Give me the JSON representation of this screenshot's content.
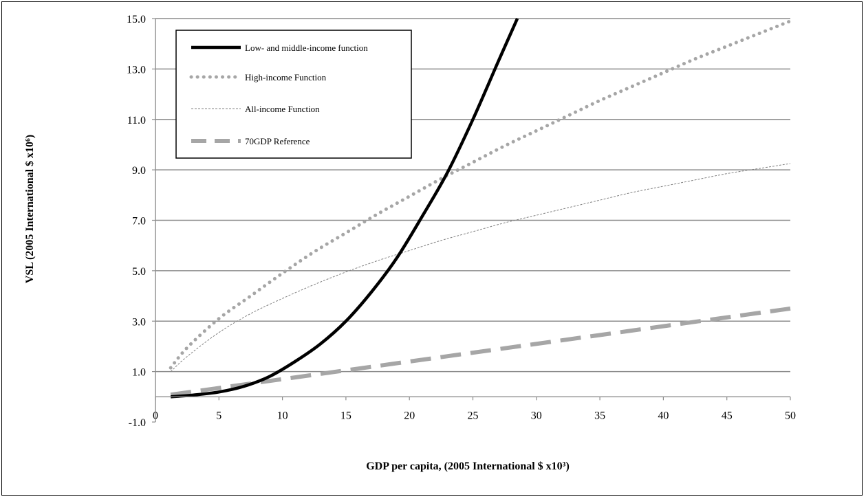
{
  "chart_data": {
    "type": "line",
    "title": "",
    "xlabel": "GDP per capita, (2005 International $ x10³)",
    "ylabel": "VSL (2005 International $ x10⁶)",
    "xlim": [
      0,
      50
    ],
    "ylim": [
      -1.0,
      15.0
    ],
    "x_ticks": [
      0,
      5,
      10,
      15,
      20,
      25,
      30,
      35,
      40,
      45,
      50
    ],
    "x_tick_labels": [
      "0",
      "5",
      "10",
      "15",
      "20",
      "25",
      "30",
      "35",
      "40",
      "45",
      "50"
    ],
    "y_ticks": [
      -1.0,
      1.0,
      3.0,
      5.0,
      7.0,
      9.0,
      11.0,
      13.0,
      15.0
    ],
    "y_tick_labels": [
      "-1.0",
      "1.0",
      "3.0",
      "5.0",
      "7.0",
      "9.0",
      "11.0",
      "13.0",
      "15.0"
    ],
    "grid": "horizontal",
    "legend_position": "top-left",
    "series": [
      {
        "name": "Low- and middle-income function",
        "color": "#000000",
        "style": "solid-thick",
        "x": [
          1.2,
          3,
          5,
          7,
          9,
          11,
          13,
          15,
          17,
          19,
          21,
          23,
          25,
          27,
          28.5
        ],
        "y": [
          0.0,
          0.07,
          0.19,
          0.42,
          0.81,
          1.4,
          2.1,
          3.0,
          4.15,
          5.5,
          7.15,
          8.9,
          11.0,
          13.3,
          15.0
        ]
      },
      {
        "name": "High-income Function",
        "color": "#a6a6a6",
        "style": "dotted",
        "x": [
          1.2,
          2.5,
          5,
          7.5,
          10,
          12.5,
          15,
          17.5,
          20,
          22.5,
          25,
          27.5,
          30,
          32.5,
          35,
          37.5,
          40,
          42.5,
          45,
          47.5,
          50
        ],
        "y": [
          1.15,
          1.95,
          3.1,
          4.0,
          4.9,
          5.75,
          6.5,
          7.25,
          7.95,
          8.65,
          9.3,
          9.95,
          10.55,
          11.15,
          11.75,
          12.3,
          12.85,
          13.4,
          13.9,
          14.4,
          14.9
        ]
      },
      {
        "name": "All-income Function",
        "color": "#808080",
        "style": "thin-dashed",
        "x": [
          1.2,
          2.5,
          5,
          7.5,
          10,
          12.5,
          15,
          17.5,
          20,
          22.5,
          25,
          27.5,
          30,
          32.5,
          35,
          37.5,
          40,
          42.5,
          45,
          47.5,
          50
        ],
        "y": [
          1.0,
          1.6,
          2.55,
          3.3,
          3.9,
          4.45,
          4.95,
          5.4,
          5.8,
          6.2,
          6.55,
          6.9,
          7.2,
          7.5,
          7.8,
          8.1,
          8.35,
          8.6,
          8.85,
          9.05,
          9.25
        ]
      },
      {
        "name": "70GDP Reference",
        "color": "#a6a6a6",
        "style": "dashed-thick",
        "x": [
          1.2,
          50
        ],
        "y": [
          0.084,
          3.5
        ]
      }
    ]
  }
}
